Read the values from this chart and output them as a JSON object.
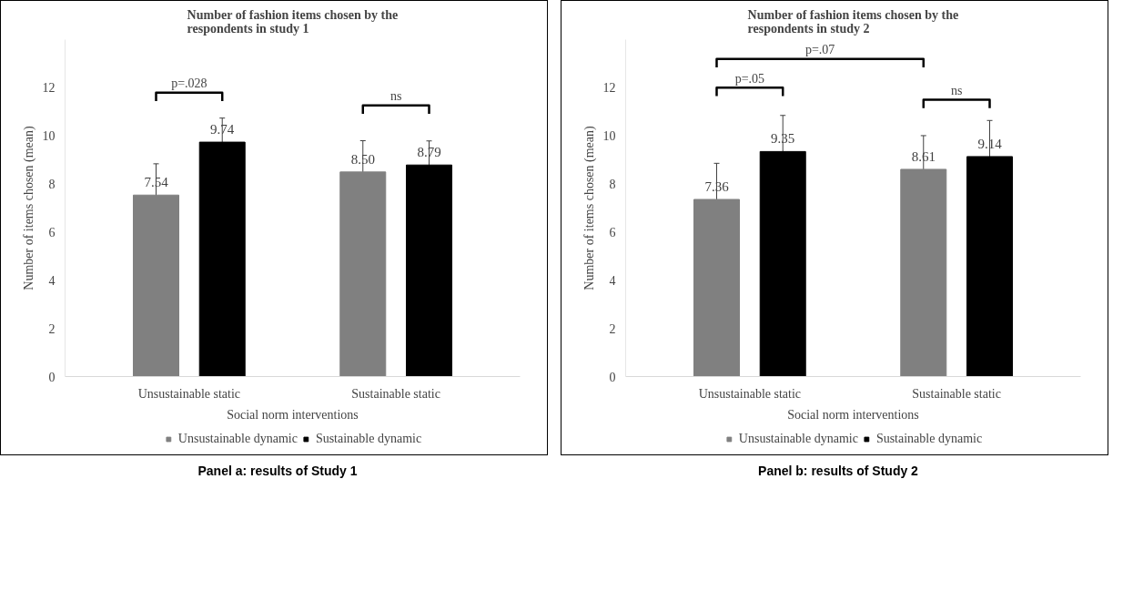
{
  "chart_data": [
    {
      "type": "bar",
      "title": "Number of fashion items chosen by the respondents in study 1",
      "xlabel": "Social norm interventions",
      "ylabel": "Number of items chosen (mean)",
      "categories": [
        "Unsustainable static",
        "Sustainable static"
      ],
      "series": [
        {
          "name": "Unsustainable dynamic",
          "color": "#808080",
          "values": [
            7.54,
            8.5
          ],
          "value_labels": [
            "7.54",
            "8.50"
          ],
          "errors": [
            1.3,
            1.3
          ]
        },
        {
          "name": "Sustainable dynamic",
          "color": "#000000",
          "values": [
            9.74,
            8.79
          ],
          "value_labels": [
            "9.74",
            "8.79"
          ],
          "errors": [
            1.0,
            1.0
          ]
        }
      ],
      "ylim": [
        0,
        14
      ],
      "yticks": [
        0,
        2,
        4,
        6,
        8,
        10,
        12
      ],
      "grid": false,
      "legend": "bottom",
      "annotations": [
        "p=.028",
        "ns",
        "Panel a: results of Study 1"
      ]
    },
    {
      "type": "bar",
      "title": "Number of fashion items chosen by the respondents in study 2",
      "xlabel": "Social norm interventions",
      "ylabel": "Number of items chosen (mean)",
      "categories": [
        "Unsustainable static",
        "Sustainable static"
      ],
      "series": [
        {
          "name": "Unsustainable dynamic",
          "color": "#808080",
          "values": [
            7.36,
            8.61
          ],
          "value_labels": [
            "7.36",
            "8.61"
          ],
          "errors": [
            1.5,
            1.4
          ]
        },
        {
          "name": "Sustainable dynamic",
          "color": "#000000",
          "values": [
            9.35,
            9.14
          ],
          "value_labels": [
            "9.35",
            "9.14"
          ],
          "errors": [
            1.5,
            1.5
          ]
        }
      ],
      "ylim": [
        0,
        14
      ],
      "yticks": [
        0,
        2,
        4,
        6,
        8,
        10,
        12
      ],
      "grid": false,
      "legend": "bottom",
      "annotations": [
        "p=.07",
        "p=.05",
        "ns",
        "Panel b: results of Study 2"
      ]
    }
  ]
}
